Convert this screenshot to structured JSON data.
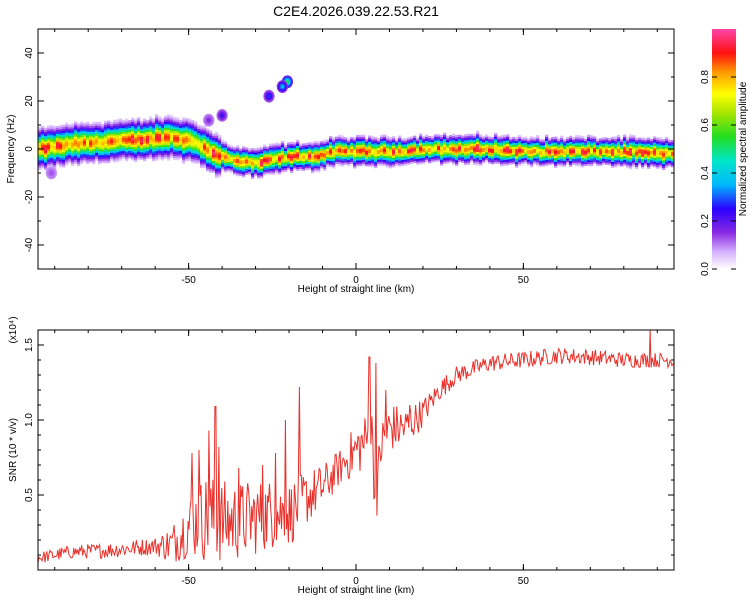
{
  "title": "C2E4.2026.039.22.53.R21",
  "chart_data": [
    {
      "type": "heatmap",
      "xlabel": "Height of straight line (km)",
      "ylabel": "Frequency (Hz)",
      "xlim": [
        -95,
        95
      ],
      "ylim": [
        -50,
        50
      ],
      "xticks": [
        -50,
        0,
        50
      ],
      "yticks": [
        -40,
        -20,
        0,
        20,
        40
      ],
      "ridge": {
        "x": [
          -95,
          -85,
          -75,
          -65,
          -55,
          -48,
          -42,
          -36,
          -30,
          -24,
          -18,
          -12,
          -6,
          0,
          6,
          12,
          20,
          30,
          40,
          50,
          60,
          70,
          80,
          95
        ],
        "freq": [
          0,
          2,
          3,
          4,
          5,
          3,
          -2,
          -5,
          -6,
          -4,
          -3,
          -3,
          -1,
          -1,
          -1,
          -1,
          0,
          0,
          0,
          -1,
          -1,
          -1,
          -1,
          -2
        ]
      },
      "blobs": [
        {
          "x": -20.5,
          "freq": 28,
          "amp": 0.45
        },
        {
          "x": -22,
          "freq": 26,
          "amp": 0.3
        },
        {
          "x": -26,
          "freq": 22,
          "amp": 0.2
        },
        {
          "x": -40,
          "freq": 14,
          "amp": 0.15
        },
        {
          "x": -44,
          "freq": 12,
          "amp": 0.08
        },
        {
          "x": -91,
          "freq": -10,
          "amp": 0.05
        }
      ],
      "colorbar": {
        "label": "Normalized spectral amplitude",
        "range": [
          0,
          1
        ],
        "ticks": [
          0.0,
          0.2,
          0.4,
          0.6,
          0.8
        ],
        "tick_labels": [
          "0.0",
          "0.2",
          "0.4",
          "0.6",
          "0.8"
        ]
      }
    },
    {
      "type": "line",
      "xlabel": "Height of straight line (km)",
      "ylabel": "SNR (10 * v/v)",
      "yscale_label": "(x10⁴)",
      "xlim": [
        -95,
        95
      ],
      "ylim": [
        0,
        1.6
      ],
      "xticks": [
        -50,
        0,
        50
      ],
      "yticks": [
        0.5,
        1.0,
        1.5
      ],
      "ytick_labels": [
        "0.5",
        "1.0",
        "1.5"
      ],
      "color": "#e8312b",
      "trend": {
        "x": [
          -95,
          -85,
          -75,
          -65,
          -55,
          -50,
          -45,
          -40,
          -35,
          -30,
          -25,
          -20,
          -15,
          -10,
          -5,
          0,
          5,
          6,
          7,
          10,
          15,
          20,
          25,
          30,
          40,
          50,
          60,
          70,
          80,
          95
        ],
        "y": [
          0.08,
          0.12,
          0.13,
          0.15,
          0.17,
          0.3,
          0.35,
          0.32,
          0.33,
          0.35,
          0.38,
          0.37,
          0.48,
          0.55,
          0.68,
          0.8,
          0.9,
          0.2,
          0.8,
          0.95,
          0.95,
          1.05,
          1.2,
          1.3,
          1.38,
          1.4,
          1.43,
          1.42,
          1.4,
          1.4
        ]
      },
      "noise": {
        "x": [
          -95,
          -60,
          -52,
          -45,
          -20,
          -5,
          0,
          5,
          15,
          22,
          30,
          95
        ],
        "amp": [
          0.04,
          0.06,
          0.18,
          0.3,
          0.22,
          0.12,
          0.18,
          0.2,
          0.14,
          0.08,
          0.06,
          0.05
        ]
      },
      "spikes": [
        {
          "x": -49,
          "y": 0.78
        },
        {
          "x": -47,
          "y": 0.8
        },
        {
          "x": -44,
          "y": 0.93
        },
        {
          "x": -42,
          "y": 1.09
        },
        {
          "x": -41,
          "y": 0.82
        },
        {
          "x": -35,
          "y": 0.68
        },
        {
          "x": -28,
          "y": 0.7
        },
        {
          "x": -24,
          "y": 0.78
        },
        {
          "x": -21,
          "y": 1.0
        },
        {
          "x": -17,
          "y": 1.22
        },
        {
          "x": 4,
          "y": 1.42
        },
        {
          "x": 6,
          "y": 1.38
        },
        {
          "x": 9,
          "y": 1.2
        },
        {
          "x": 16,
          "y": 1.1
        },
        {
          "x": 88,
          "y": 1.6
        }
      ]
    }
  ]
}
